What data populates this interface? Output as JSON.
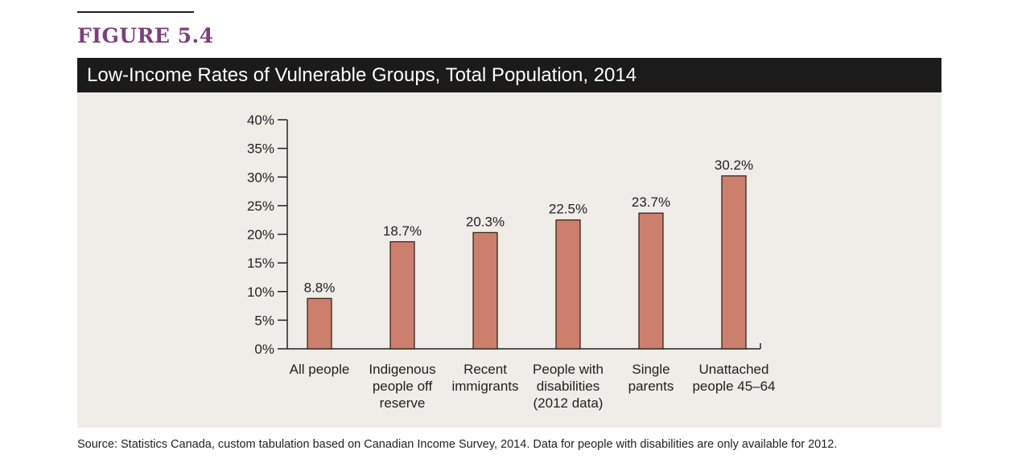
{
  "figure_label": "FIGURE 5.4",
  "title": "Low-Income Rates of Vulnerable Groups, Total Population, 2014",
  "source": "Source: Statistics Canada, custom tabulation based on Canadian Income Survey, 2014. Data for people with disabilities are only available for 2012.",
  "colors": {
    "bar": "#cd7f6d",
    "bar_stroke": "#2a1a17",
    "title_bar": "#1b1b1b",
    "panel": "#f0ece7",
    "figure_label": "#7d3f7c"
  },
  "chart_data": {
    "type": "bar",
    "title": "Low-Income Rates of Vulnerable Groups, Total Population, 2014",
    "xlabel": "",
    "ylabel": "",
    "ylim": [
      0,
      40
    ],
    "y_ticks": [
      "0%",
      "5%",
      "10%",
      "15%",
      "20%",
      "25%",
      "30%",
      "35%",
      "40%"
    ],
    "categories": [
      [
        "All people"
      ],
      [
        "Indigenous",
        "people off",
        "reserve"
      ],
      [
        "Recent",
        "immigrants"
      ],
      [
        "People with",
        "disabilities",
        "(2012 data)"
      ],
      [
        "Single",
        "parents"
      ],
      [
        "Unattached",
        "people 45–64"
      ]
    ],
    "values": [
      8.8,
      18.7,
      20.3,
      22.5,
      23.7,
      30.2
    ],
    "data_labels": [
      "8.8%",
      "18.7%",
      "20.3%",
      "22.5%",
      "23.7%",
      "30.2%"
    ],
    "grid": false,
    "legend": "none"
  }
}
